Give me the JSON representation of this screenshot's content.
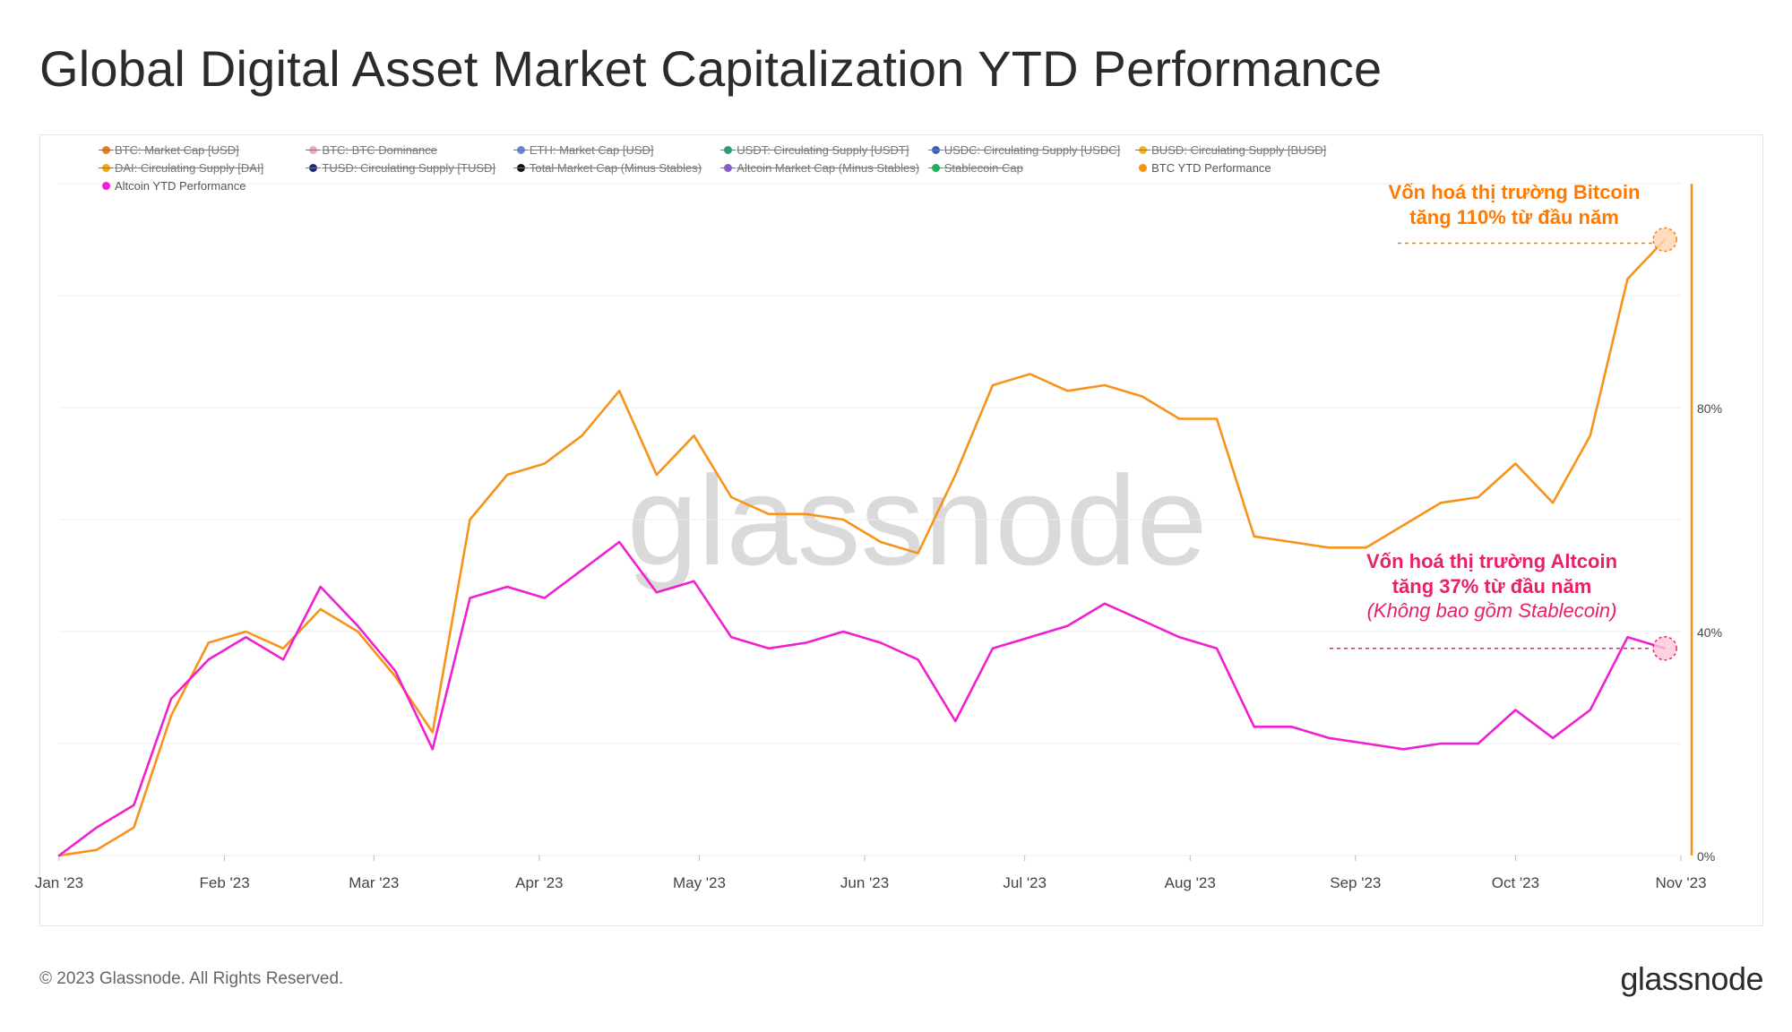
{
  "title": "Global Digital Asset Market Capitalization YTD Performance",
  "footer": {
    "copyright": "© 2023 Glassnode. All Rights Reserved.",
    "logo": "glassnode"
  },
  "watermark": "glassnode",
  "legend": [
    {
      "label": "BTC: Market Cap [USD]",
      "color": "#e0812a",
      "hidden": true
    },
    {
      "label": "BTC: BTC Dominance",
      "color": "#e8a9c6",
      "hidden": true
    },
    {
      "label": "ETH: Market Cap [USD]",
      "color": "#6f86d6",
      "hidden": true
    },
    {
      "label": "USDT: Circulating Supply [USDT]",
      "color": "#2f9a7a",
      "hidden": true
    },
    {
      "label": "USDC: Circulating Supply [USDC]",
      "color": "#3f5fb8",
      "hidden": true
    },
    {
      "label": "BUSD: Circulating Supply [BUSD]",
      "color": "#f0b429",
      "hidden": true
    },
    {
      "label": "",
      "color": "",
      "hidden": true
    },
    {
      "label": "DAI: Circulating Supply [DAI]",
      "color": "#f2a516",
      "hidden": true
    },
    {
      "label": "TUSD: Circulating Supply [TUSD]",
      "color": "#1f2a6b",
      "hidden": true
    },
    {
      "label": "Total Market Cap (Minus Stables)",
      "color": "#111111",
      "hidden": true
    },
    {
      "label": "Altcoin Market Cap (Minus Stables)",
      "color": "#8b5cc7",
      "hidden": true
    },
    {
      "label": "Stablecoin Cap",
      "color": "#1fb05a",
      "hidden": true
    },
    {
      "label": "BTC YTD Performance",
      "color": "#f7931a",
      "hidden": false
    },
    {
      "label": "",
      "color": "",
      "hidden": true
    },
    {
      "label": "Altcoin YTD Performance",
      "color": "#f01fcf",
      "hidden": false
    }
  ],
  "annotations": {
    "btc_line1": "Vốn hoá thị trường Bitcoin",
    "btc_line2": "tăng 110% từ đầu năm",
    "alt_line1": "Vốn hoá thị trường Altcoin",
    "alt_line2": "tăng 37% từ đầu năm",
    "alt_note": "(Không bao gồm Stablecoin)"
  },
  "colors": {
    "btc": "#f7931a",
    "altcoin": "#f01fcf",
    "btc_annotation": "#ff7a00",
    "alt_annotation": "#ea1f6c",
    "grid": "#ececec",
    "axis_text": "#444444"
  },
  "chart_data": {
    "type": "line",
    "title": "Global Digital Asset Market Capitalization YTD Performance",
    "xlabel": "",
    "ylabel": "",
    "x_ticks": [
      "Jan '23",
      "Feb '23",
      "Mar '23",
      "Apr '23",
      "May '23",
      "Jun '23",
      "Jul '23",
      "Aug '23",
      "Sep '23",
      "Oct '23",
      "Nov '23"
    ],
    "y_ticks": [
      "0%",
      "40%",
      "80%"
    ],
    "ylim": [
      0,
      120
    ],
    "grid": true,
    "legend_position": "top-left",
    "x": [
      "2023-01-01",
      "2023-01-08",
      "2023-01-15",
      "2023-01-22",
      "2023-01-29",
      "2023-02-05",
      "2023-02-12",
      "2023-02-19",
      "2023-02-26",
      "2023-03-05",
      "2023-03-12",
      "2023-03-19",
      "2023-03-26",
      "2023-04-02",
      "2023-04-09",
      "2023-04-16",
      "2023-04-23",
      "2023-04-30",
      "2023-05-07",
      "2023-05-14",
      "2023-05-21",
      "2023-05-28",
      "2023-06-04",
      "2023-06-11",
      "2023-06-18",
      "2023-06-25",
      "2023-07-02",
      "2023-07-09",
      "2023-07-16",
      "2023-07-23",
      "2023-07-30",
      "2023-08-06",
      "2023-08-13",
      "2023-08-20",
      "2023-08-27",
      "2023-09-03",
      "2023-09-10",
      "2023-09-17",
      "2023-09-24",
      "2023-10-01",
      "2023-10-08",
      "2023-10-15",
      "2023-10-22",
      "2023-10-29"
    ],
    "series": [
      {
        "name": "BTC YTD Performance",
        "color": "#f7931a",
        "values": [
          0,
          1,
          5,
          25,
          38,
          40,
          37,
          44,
          40,
          32,
          22,
          60,
          68,
          70,
          75,
          83,
          68,
          75,
          64,
          61,
          61,
          60,
          56,
          54,
          68,
          84,
          86,
          83,
          84,
          82,
          78,
          78,
          57,
          56,
          55,
          55,
          59,
          63,
          64,
          70,
          63,
          75,
          103,
          110
        ]
      },
      {
        "name": "Altcoin YTD Performance",
        "color": "#f01fcf",
        "values": [
          0,
          5,
          9,
          28,
          35,
          39,
          35,
          48,
          41,
          33,
          19,
          46,
          48,
          46,
          51,
          56,
          47,
          49,
          39,
          37,
          38,
          40,
          38,
          35,
          24,
          37,
          39,
          41,
          45,
          42,
          39,
          37,
          23,
          23,
          21,
          20,
          19,
          20,
          20,
          26,
          21,
          26,
          39,
          37
        ]
      }
    ]
  }
}
